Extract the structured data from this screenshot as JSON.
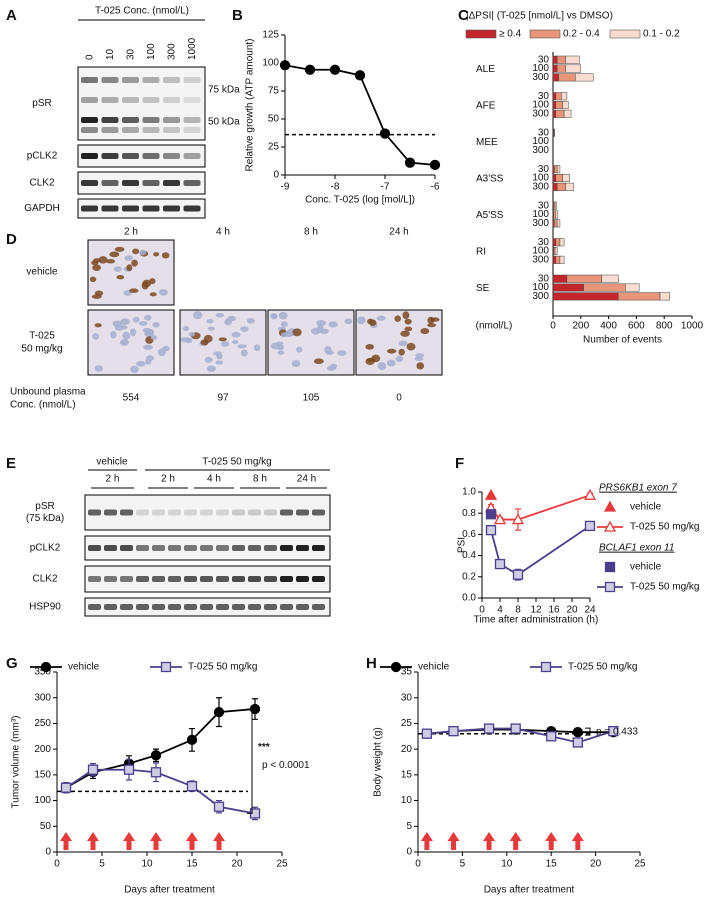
{
  "panel_labels": [
    "A",
    "B",
    "C",
    "D",
    "E",
    "F",
    "G",
    "H"
  ],
  "blot_a": {
    "title": "T-025 Conc. (nmol/L)",
    "lanes": [
      "0",
      "10",
      "30",
      "100",
      "300",
      "1000"
    ],
    "rows": [
      "pSR",
      "pCLK2",
      "CLK2",
      "GAPDH"
    ],
    "markers": [
      "75 kDa",
      "50 kDa"
    ]
  },
  "histology_d": {
    "timepoints": [
      "2 h",
      "4 h",
      "8 h",
      "24 h"
    ],
    "groups": [
      [
        "vehicle"
      ],
      [
        "T-025",
        "50 mg/kg"
      ]
    ],
    "conc_label": [
      "Unbound plasma",
      "Conc. (nmol/L)"
    ],
    "conc_values": [
      554,
      97,
      105,
      0
    ]
  },
  "blot_e": {
    "groups": [
      "vehicle",
      "T-025 50 mg/kg"
    ],
    "times": [
      "2 h",
      "2 h",
      "4 h",
      "8 h",
      "24 h"
    ],
    "rows": [
      [
        "pSR",
        "(75 kDa)"
      ],
      [
        "pCLK2"
      ],
      [
        "CLK2"
      ],
      [
        "HSP90"
      ]
    ]
  },
  "chart_data": [
    {
      "type": "line",
      "xlabel": "Conc. T-025 (log [mol/L])",
      "ylabel": "Relative growth (ATP amount)",
      "xlim": [
        -9,
        -6
      ],
      "xticks": [
        -9,
        -8,
        -7,
        -6
      ],
      "ylim": [
        0,
        125
      ],
      "yticks": [
        0,
        25,
        50,
        75,
        100,
        125
      ],
      "reference_line": 36,
      "series": [
        {
          "color": "#000000",
          "marker": "circle",
          "marker_fill": "#000000",
          "line": true,
          "x": [
            -9,
            -8.5,
            -8,
            -7.5,
            -7,
            -6.5,
            -6
          ],
          "values": [
            98,
            94,
            94,
            89,
            37,
            11,
            9
          ]
        }
      ]
    },
    {
      "type": "bar",
      "orientation": "horizontal",
      "stacked": true,
      "legend_title": "|ΔPSI|  (T-025 [nmol/L] vs DMSO)",
      "groups": [
        "ALE",
        "AFE",
        "MEE",
        "A3'SS",
        "A5'SS",
        "RI",
        "SE"
      ],
      "categories": [
        "30",
        "100",
        "300",
        "30",
        "100",
        "300",
        "30",
        "100",
        "300",
        "30",
        "100",
        "300",
        "30",
        "100",
        "300",
        "30",
        "100",
        "300",
        "30",
        "100",
        "300"
      ],
      "category_unit": "(nmol/L)",
      "xlabel": "Number of events",
      "xlim": [
        0,
        1000
      ],
      "xticks": [
        0,
        200,
        400,
        600,
        800,
        1000
      ],
      "series": [
        {
          "name": "≥ 0.4",
          "color": "#c1272d",
          "values": [
            30,
            30,
            40,
            20,
            20,
            20,
            5,
            0,
            0,
            10,
            20,
            30,
            5,
            5,
            10,
            20,
            5,
            20,
            100,
            220,
            470
          ]
        },
        {
          "name": "0.2 - 0.4",
          "color": "#e8957a",
          "values": [
            60,
            60,
            120,
            40,
            50,
            60,
            3,
            0,
            0,
            20,
            50,
            60,
            10,
            15,
            20,
            30,
            10,
            30,
            250,
            300,
            300
          ]
        },
        {
          "name": "0.1 - 0.2",
          "color": "#f8dccf",
          "values": [
            100,
            110,
            130,
            40,
            40,
            50,
            3,
            0,
            0,
            20,
            50,
            60,
            10,
            15,
            20,
            30,
            15,
            30,
            120,
            100,
            70
          ]
        }
      ]
    },
    {
      "type": "line",
      "xlabel": "Time after administration (h)",
      "ylabel": "PSI",
      "xlim": [
        0,
        24
      ],
      "xticks": [
        0,
        4,
        8,
        12,
        16,
        20,
        24
      ],
      "ylim": [
        0,
        1
      ],
      "yticks": [
        {
          "value": 0,
          "label": "0.0"
        },
        0.2,
        0.4,
        0.6,
        0.8,
        {
          "value": 1,
          "label": "1.0"
        }
      ],
      "legend_titles": [
        "PRS6KB1 exon 7",
        "BCLAF1 exon 11"
      ],
      "series": [
        {
          "name": "vehicle",
          "color": "#e8393a",
          "marker": "triangle",
          "marker_fill": "#e8393a",
          "line": false,
          "x": [
            2
          ],
          "values": [
            0.97
          ]
        },
        {
          "name": "T-025 50 mg/kg",
          "color": "#e8393a",
          "marker": "triangle",
          "marker_fill": "#ffffff",
          "line": true,
          "x": [
            2,
            4,
            8,
            24
          ],
          "values": [
            0.85,
            0.74,
            0.74,
            0.97
          ],
          "errors": [
            0.03,
            0.02,
            0.1,
            0.02
          ]
        },
        {
          "name": "vehicle",
          "color": "#4b3f8c",
          "marker": "square",
          "marker_fill": "#4b3f8c",
          "line": false,
          "x": [
            2
          ],
          "values": [
            0.79
          ]
        },
        {
          "name": "T-025 50 mg/kg",
          "color": "#4b3f8c",
          "marker": "square",
          "marker_fill": "#cfcde6",
          "line": true,
          "x": [
            2,
            4,
            8,
            24
          ],
          "values": [
            0.64,
            0.32,
            0.22,
            0.68
          ],
          "errors": [
            0.03,
            0.02,
            0.05,
            0.02
          ]
        }
      ]
    },
    {
      "type": "line",
      "xlabel": "Days after treatment",
      "ylabel": "Tumor volume (mm³)",
      "xlim": [
        0,
        25
      ],
      "xticks": [
        0,
        5,
        10,
        15,
        20,
        25
      ],
      "ylim": [
        0,
        350
      ],
      "yticks": [
        0,
        50,
        100,
        150,
        200,
        250,
        300,
        350
      ],
      "reference_line": 118,
      "annotations": [
        "***",
        "p < 0.0001"
      ],
      "dosing_days": [
        1,
        4,
        8,
        11,
        15,
        18
      ],
      "arrow_color": "#e8393a",
      "series": [
        {
          "name": "vehicle",
          "color": "#000000",
          "marker": "circle",
          "marker_fill": "#000000",
          "line": true,
          "x": [
            1,
            4,
            8,
            11,
            15,
            18,
            22
          ],
          "values": [
            125,
            155,
            172,
            188,
            218,
            272,
            278
          ],
          "errors": [
            10,
            12,
            15,
            12,
            22,
            28,
            20
          ]
        },
        {
          "name": "T-025 50 mg/kg",
          "color": "#4b3f8c",
          "marker": "square",
          "marker_fill": "#cfcde6",
          "line": true,
          "x": [
            1,
            4,
            8,
            11,
            15,
            18,
            22
          ],
          "values": [
            125,
            160,
            160,
            155,
            128,
            88,
            75
          ],
          "errors": [
            10,
            12,
            20,
            18,
            10,
            12,
            12
          ]
        }
      ]
    },
    {
      "type": "line",
      "xlabel": "Days after treatment",
      "ylabel": "Body weight (g)",
      "xlim": [
        0,
        25
      ],
      "xticks": [
        0,
        5,
        10,
        15,
        20,
        25
      ],
      "ylim": [
        0,
        35
      ],
      "yticks": [
        0,
        5,
        10,
        15,
        20,
        25,
        30,
        35
      ],
      "reference_line": 23,
      "annotations": [
        "p = 0.433"
      ],
      "dosing_days": [
        1,
        4,
        8,
        11,
        15,
        18
      ],
      "arrow_color": "#e8393a",
      "series": [
        {
          "name": "vehicle",
          "color": "#000000",
          "marker": "circle",
          "marker_fill": "#000000",
          "line": true,
          "x": [
            1,
            4,
            8,
            11,
            15,
            18,
            22
          ],
          "values": [
            23,
            23.5,
            23.8,
            23.8,
            23.5,
            23.3,
            23.3
          ],
          "errors": [
            0.5,
            0.5,
            0.5,
            0.5,
            0.5,
            0.5,
            0.5
          ]
        },
        {
          "name": "T-025 50 mg/kg",
          "color": "#4b3f8c",
          "marker": "square",
          "marker_fill": "#cfcde6",
          "line": true,
          "x": [
            1,
            4,
            8,
            11,
            15,
            18,
            22
          ],
          "values": [
            23,
            23.5,
            24,
            24,
            22.5,
            21.3,
            23.5
          ],
          "errors": [
            0.5,
            0.5,
            0.5,
            0.5,
            0.6,
            0.8,
            0.6
          ]
        }
      ]
    }
  ]
}
